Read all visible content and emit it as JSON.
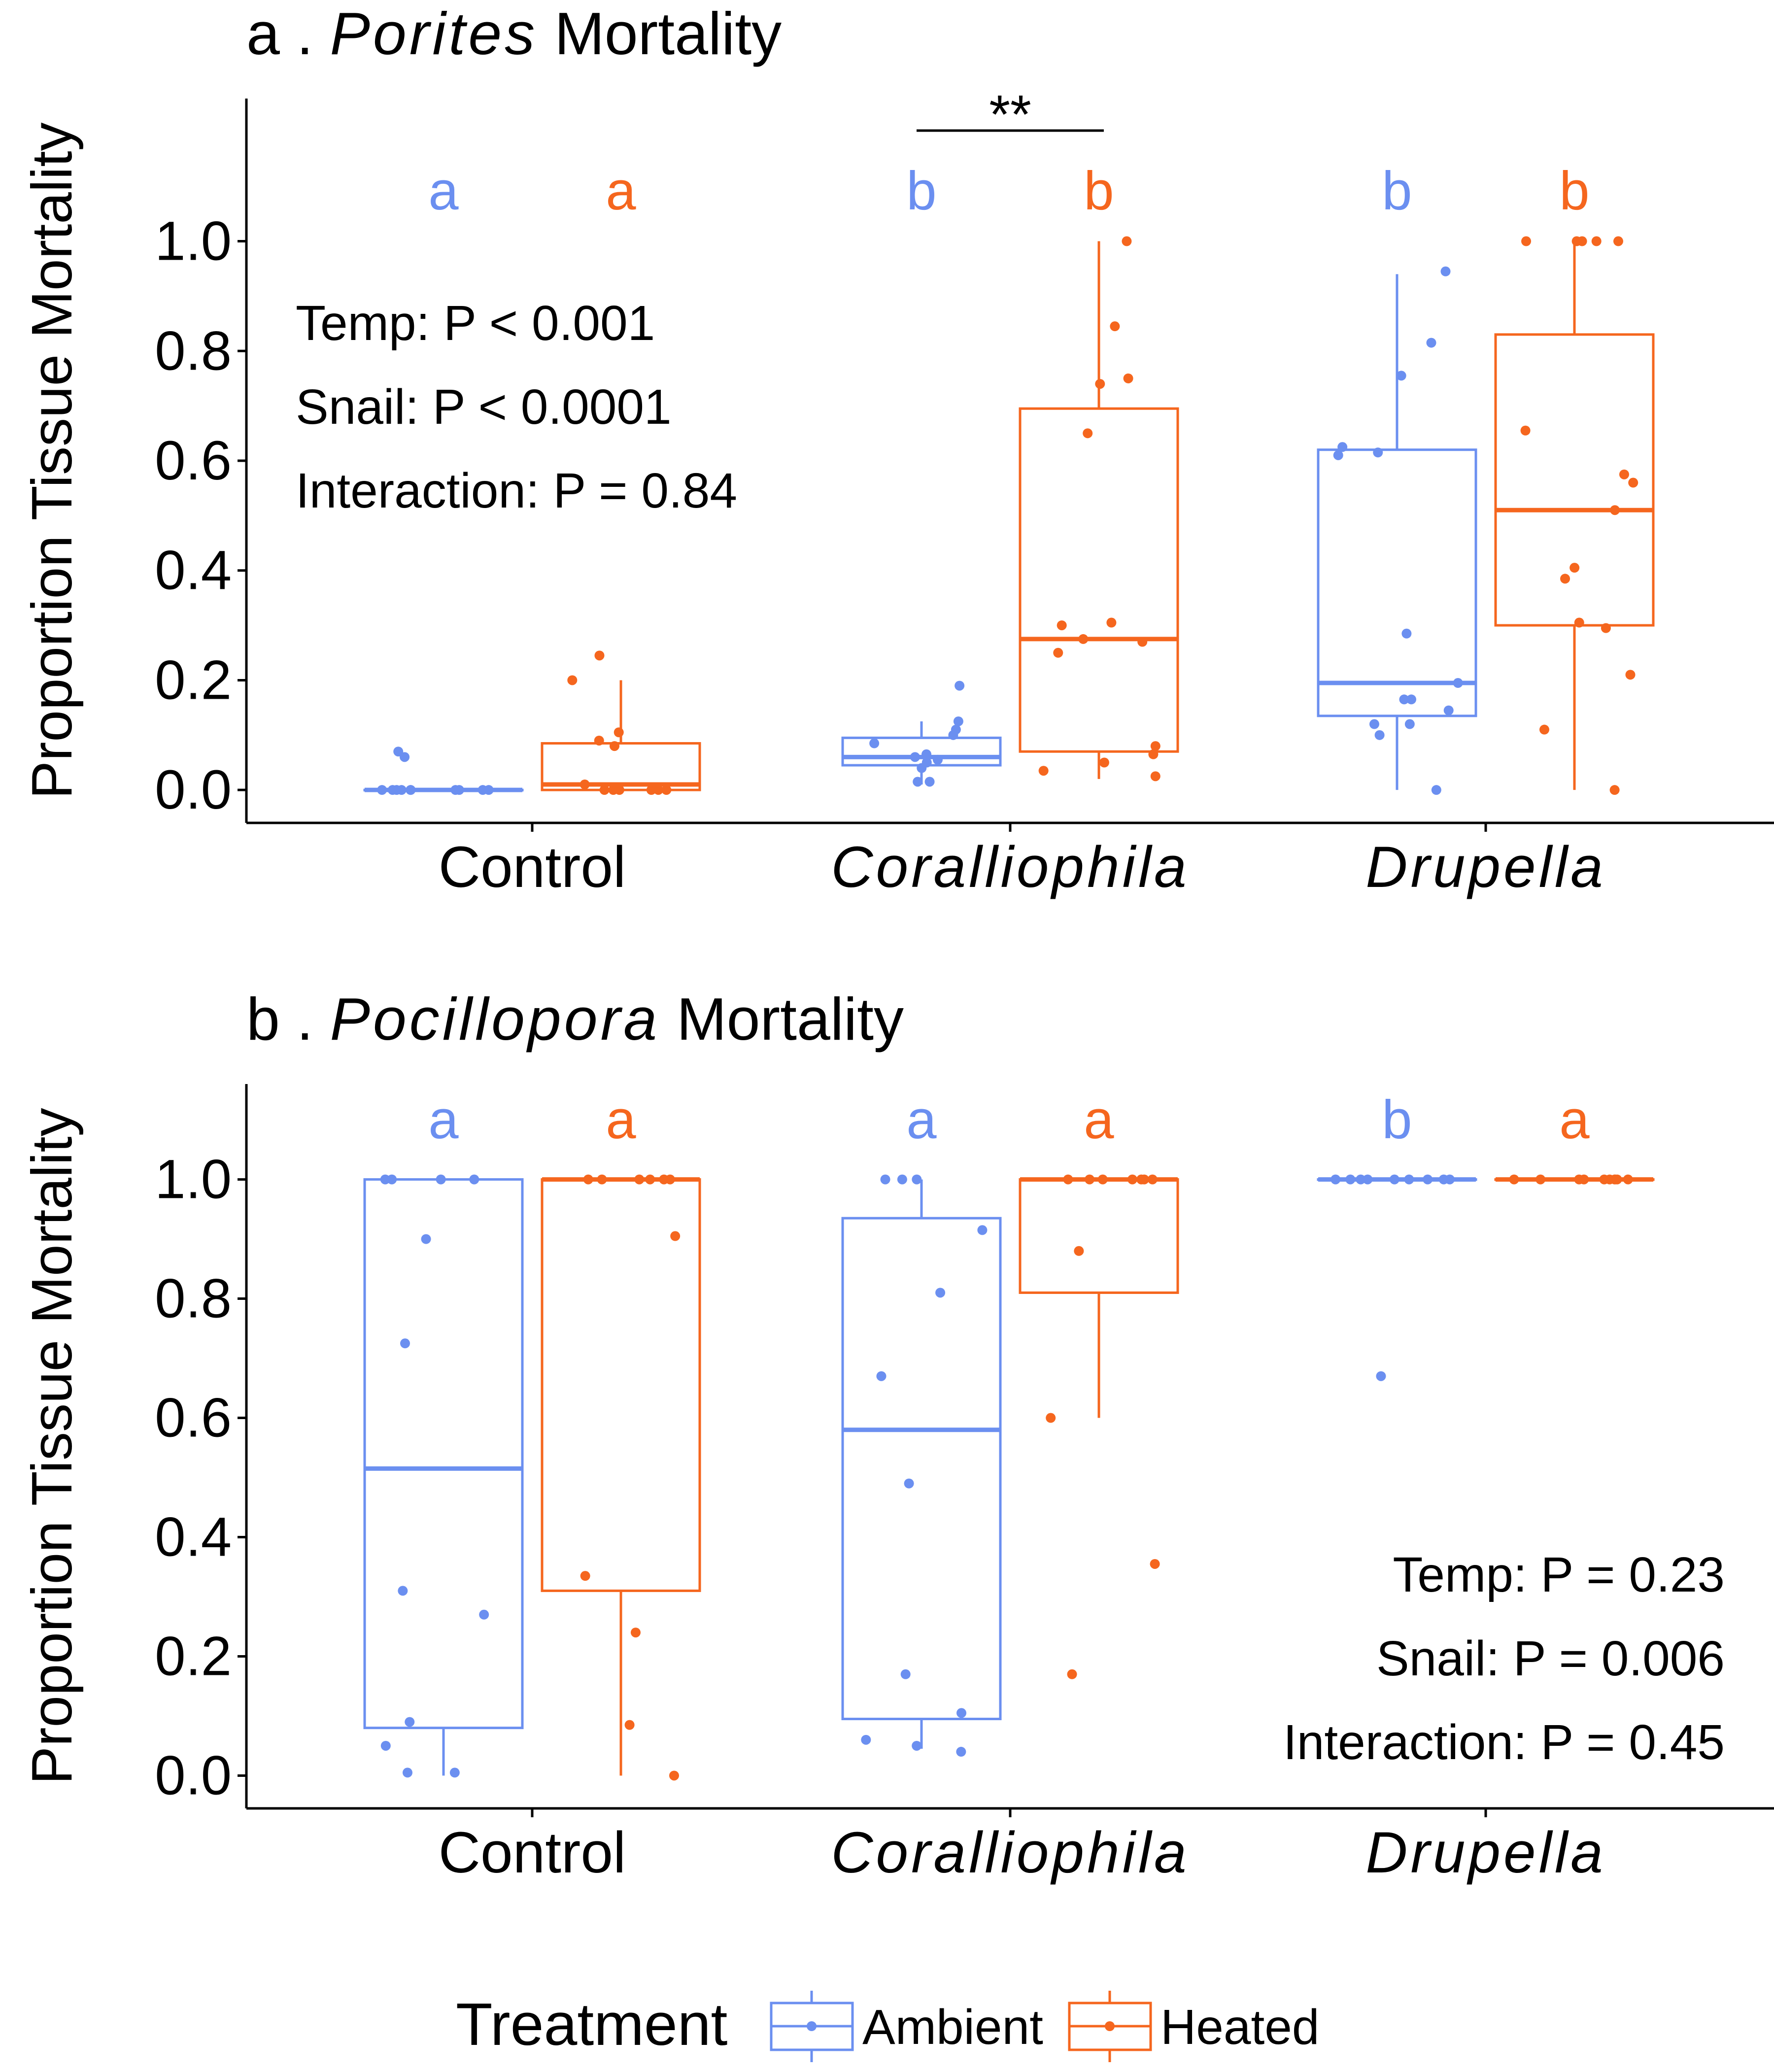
{
  "colors": {
    "ambient": "#6b8ff0",
    "heated": "#f5661e",
    "axis": "#000000"
  },
  "legend": {
    "title": "Treatment",
    "items": [
      {
        "label": "Ambient",
        "color": "#6b8ff0"
      },
      {
        "label": "Heated",
        "color": "#f5661e"
      }
    ]
  },
  "chart_data": [
    {
      "type": "box",
      "title_prefix": "a .",
      "title_genus": "Porites",
      "title_suffix": "Mortality",
      "ylabel": "Proportion Tissue Mortality",
      "ylim": [
        -0.06,
        1.26
      ],
      "yticks": [
        "0.0",
        "0.2",
        "0.4",
        "0.6",
        "0.8",
        "1.0"
      ],
      "categories": [
        {
          "label": "Control",
          "italic": false
        },
        {
          "label": "Coralliophila",
          "italic": true
        },
        {
          "label": "Drupella",
          "italic": true
        }
      ],
      "stats": [
        "Temp: P < 0.001",
        "Snail: P < 0.0001",
        "Interaction: P = 0.84"
      ],
      "stats_position": "top-left",
      "significance": {
        "label": "**",
        "category_index": 1
      },
      "groups": [
        {
          "category": "Control",
          "treatment": "Ambient",
          "letter": "a",
          "box": {
            "whisker_low": 0.0,
            "q1": 0.0,
            "median": 0.0,
            "q3": 0.0,
            "whisker_high": 0.0
          },
          "points": [
            0.0,
            0.0,
            0.0,
            0.0,
            0.0,
            0.0,
            0.0,
            0.0,
            0.0,
            0.0,
            0.07,
            0.06
          ]
        },
        {
          "category": "Control",
          "treatment": "Heated",
          "letter": "a",
          "box": {
            "whisker_low": 0.0,
            "q1": 0.0,
            "median": 0.01,
            "q3": 0.085,
            "whisker_high": 0.2
          },
          "points": [
            0.245,
            0.2,
            0.105,
            0.09,
            0.08,
            0.01,
            0.0,
            0.0,
            0.0,
            0.0,
            0.0,
            0.0
          ]
        },
        {
          "category": "Coralliophila",
          "treatment": "Ambient",
          "letter": "b",
          "box": {
            "whisker_low": 0.01,
            "q1": 0.045,
            "median": 0.06,
            "q3": 0.095,
            "whisker_high": 0.125
          },
          "points": [
            0.19,
            0.125,
            0.11,
            0.1,
            0.085,
            0.065,
            0.06,
            0.055,
            0.05,
            0.04,
            0.015,
            0.015
          ]
        },
        {
          "category": "Coralliophila",
          "treatment": "Heated",
          "letter": "b",
          "box": {
            "whisker_low": 0.02,
            "q1": 0.07,
            "median": 0.275,
            "q3": 0.695,
            "whisker_high": 1.0
          },
          "points": [
            1.0,
            0.845,
            0.75,
            0.74,
            0.65,
            0.305,
            0.3,
            0.275,
            0.27,
            0.25,
            0.08,
            0.065,
            0.05,
            0.035,
            0.025
          ]
        },
        {
          "category": "Drupella",
          "treatment": "Ambient",
          "letter": "b",
          "box": {
            "whisker_low": 0.0,
            "q1": 0.135,
            "median": 0.195,
            "q3": 0.62,
            "whisker_high": 0.94
          },
          "points": [
            0.945,
            0.815,
            0.755,
            0.625,
            0.615,
            0.61,
            0.285,
            0.195,
            0.165,
            0.165,
            0.145,
            0.12,
            0.12,
            0.1,
            0.0
          ]
        },
        {
          "category": "Drupella",
          "treatment": "Heated",
          "letter": "b",
          "box": {
            "whisker_low": 0.0,
            "q1": 0.3,
            "median": 0.51,
            "q3": 0.83,
            "whisker_high": 1.0
          },
          "points": [
            1.0,
            1.0,
            1.0,
            1.0,
            1.0,
            0.655,
            0.575,
            0.56,
            0.51,
            0.405,
            0.385,
            0.305,
            0.295,
            0.21,
            0.11,
            0.0
          ]
        }
      ]
    },
    {
      "type": "box",
      "title_prefix": "b .",
      "title_genus": "Pocillopora",
      "title_suffix": "Mortality",
      "ylabel": "Proportion Tissue Mortality",
      "ylim": [
        -0.055,
        1.16
      ],
      "yticks": [
        "0.0",
        "0.2",
        "0.4",
        "0.6",
        "0.8",
        "1.0"
      ],
      "categories": [
        {
          "label": "Control",
          "italic": false
        },
        {
          "label": "Coralliophila",
          "italic": true
        },
        {
          "label": "Drupella",
          "italic": true
        }
      ],
      "stats": [
        "Temp: P = 0.23",
        "Snail: P = 0.006",
        "Interaction: P = 0.45"
      ],
      "stats_position": "bottom-right",
      "groups": [
        {
          "category": "Control",
          "treatment": "Ambient",
          "letter": "a",
          "box": {
            "whisker_low": 0.0,
            "q1": 0.08,
            "median": 0.515,
            "q3": 1.0,
            "whisker_high": 1.0
          },
          "points": [
            1.0,
            1.0,
            1.0,
            1.0,
            0.9,
            0.725,
            0.31,
            0.27,
            0.09,
            0.05,
            0.005,
            0.005
          ]
        },
        {
          "category": "Control",
          "treatment": "Heated",
          "letter": "a",
          "box": {
            "whisker_low": 0.0,
            "q1": 0.31,
            "median": 1.0,
            "q3": 1.0,
            "whisker_high": 1.0
          },
          "points": [
            1.0,
            1.0,
            1.0,
            1.0,
            1.0,
            1.0,
            0.905,
            0.335,
            0.24,
            0.085,
            0.0
          ]
        },
        {
          "category": "Coralliophila",
          "treatment": "Ambient",
          "letter": "a",
          "box": {
            "whisker_low": 0.045,
            "q1": 0.095,
            "median": 0.58,
            "q3": 0.935,
            "whisker_high": 1.0
          },
          "points": [
            1.0,
            1.0,
            1.0,
            0.915,
            0.81,
            0.67,
            0.49,
            0.17,
            0.105,
            0.06,
            0.05,
            0.04
          ]
        },
        {
          "category": "Coralliophila",
          "treatment": "Heated",
          "letter": "a",
          "box": {
            "whisker_low": 0.6,
            "q1": 0.81,
            "median": 1.0,
            "q3": 1.0,
            "whisker_high": 1.0
          },
          "points": [
            1.0,
            1.0,
            1.0,
            1.0,
            1.0,
            1.0,
            1.0,
            0.88,
            0.6,
            0.355,
            0.17
          ]
        },
        {
          "category": "Drupella",
          "treatment": "Ambient",
          "letter": "b",
          "box": {
            "whisker_low": 1.0,
            "q1": 1.0,
            "median": 1.0,
            "q3": 1.0,
            "whisker_high": 1.0
          },
          "points": [
            1.0,
            1.0,
            1.0,
            1.0,
            1.0,
            1.0,
            1.0,
            1.0,
            1.0,
            0.67
          ]
        },
        {
          "category": "Drupella",
          "treatment": "Heated",
          "letter": "a",
          "box": {
            "whisker_low": 1.0,
            "q1": 1.0,
            "median": 1.0,
            "q3": 1.0,
            "whisker_high": 1.0
          },
          "points": [
            1.0,
            1.0,
            1.0,
            1.0,
            1.0,
            1.0,
            1.0,
            1.0,
            1.0,
            1.0
          ]
        }
      ]
    }
  ]
}
